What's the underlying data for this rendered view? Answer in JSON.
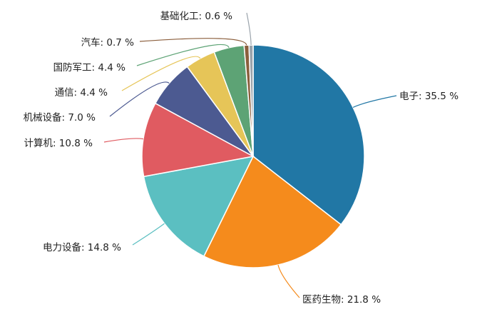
{
  "chart_data": {
    "type": "pie",
    "title": "",
    "slices": [
      {
        "label": "电子",
        "value": 35.5,
        "color": "#2177a5"
      },
      {
        "label": "医药生物",
        "value": 21.8,
        "color": "#f58b1c"
      },
      {
        "label": "电力设备",
        "value": 14.8,
        "color": "#5bbfc1"
      },
      {
        "label": "计算机",
        "value": 10.8,
        "color": "#e05b61"
      },
      {
        "label": "机械设备",
        "value": 7.0,
        "color": "#4c5a91"
      },
      {
        "label": "通信",
        "value": 4.4,
        "color": "#e6c558"
      },
      {
        "label": "国防军工",
        "value": 4.4,
        "color": "#5da375"
      },
      {
        "label": "汽车",
        "value": 0.7,
        "color": "#8b5e3c"
      },
      {
        "label": "基础化工",
        "value": 0.6,
        "color": "#9aa3ab"
      }
    ],
    "label_texts": [
      "电子: 35.5 %",
      "医药生物: 21.8 %",
      "电力设备: 14.8 %",
      "计算机: 10.8 %",
      "机械设备: 7.0 %",
      "通信: 4.4 %",
      "国防军工: 4.4 %",
      "汽车: 0.7 %",
      "基础化工: 0.6 %"
    ]
  }
}
